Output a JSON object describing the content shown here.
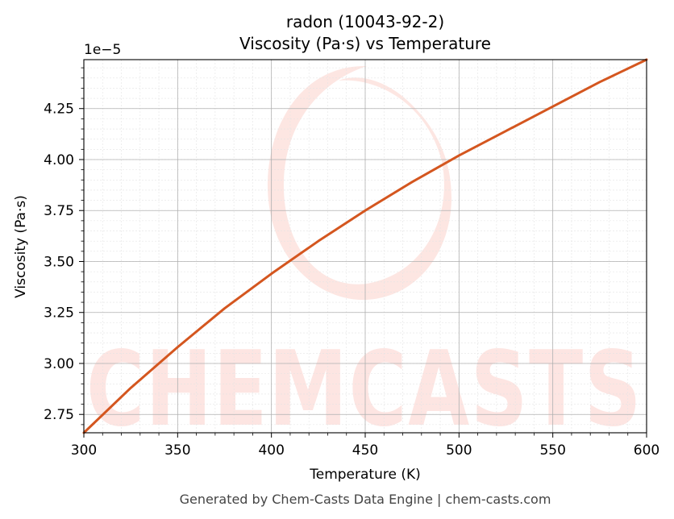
{
  "chart_data": {
    "type": "line",
    "title": "radon (10043-92-2)",
    "subtitle": "Viscosity (Pa·s) vs Temperature",
    "xlabel": "Temperature (K)",
    "ylabel": "Viscosity (Pa·s)",
    "y_offset_label": "1e−5",
    "xlim": [
      300,
      600
    ],
    "ylim": [
      2.66,
      4.49
    ],
    "y_scale_factor": "1e-5",
    "x_ticks": [
      300,
      350,
      400,
      450,
      500,
      550,
      600
    ],
    "y_ticks": [
      2.75,
      3.0,
      3.25,
      3.5,
      3.75,
      4.0,
      4.25
    ],
    "x_tick_labels": [
      "300",
      "350",
      "400",
      "450",
      "500",
      "550",
      "600"
    ],
    "y_tick_labels": [
      "2.75",
      "3.00",
      "3.25",
      "3.50",
      "3.75",
      "4.00",
      "4.25"
    ],
    "grid": true,
    "series": [
      {
        "color": "#d4561f",
        "x": [
          300,
          325,
          350,
          375,
          400,
          425,
          450,
          475,
          500,
          525,
          550,
          575,
          600
        ],
        "y": [
          2.66,
          2.88,
          3.08,
          3.27,
          3.44,
          3.6,
          3.75,
          3.89,
          4.02,
          4.14,
          4.26,
          4.38,
          4.49
        ]
      }
    ]
  },
  "watermark": {
    "text": "CHEMCASTS",
    "color": "#fde3df"
  },
  "footer": "Generated by Chem-Casts Data Engine | chem-casts.com"
}
